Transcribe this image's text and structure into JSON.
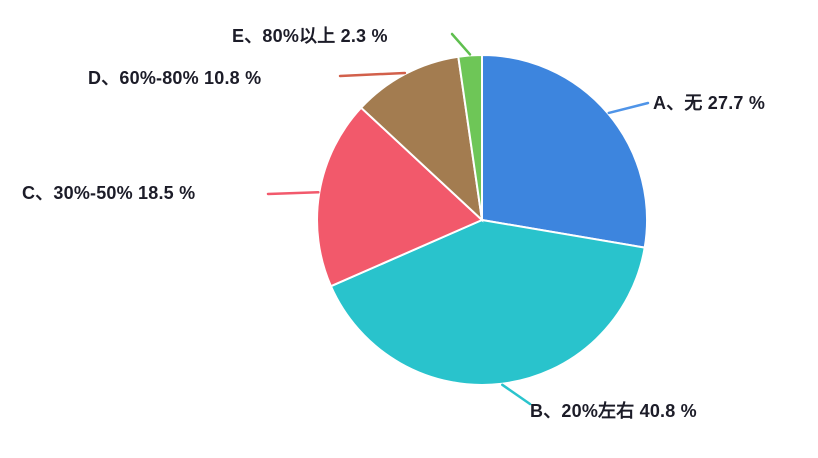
{
  "chart_data": {
    "type": "pie",
    "title": "",
    "unit": "%",
    "start_angle_deg": 0,
    "direction": "clockwise",
    "legend_position": "none",
    "background_color": "#ffffff",
    "label_text_color": "#1c1c28",
    "slices": [
      {
        "id": "A",
        "label": "A、无",
        "value": 27.7,
        "display": "A、无 27.7 %",
        "color": "#3d85de",
        "line_color": "#4f94e8"
      },
      {
        "id": "B",
        "label": "B、20%左右",
        "value": 40.8,
        "display": "B、20%左右 40.8 %",
        "color": "#29c3cc",
        "line_color": "#2bc4cd"
      },
      {
        "id": "C",
        "label": "C、30%-50%",
        "value": 18.5,
        "display": "C、30%-50% 18.5 %",
        "color": "#f2596b",
        "line_color": "#f2596c"
      },
      {
        "id": "D",
        "label": "D、60%-80%",
        "value": 10.8,
        "display": "D、60%-80% 10.8 %",
        "color": "#a37c50",
        "line_color": "#d2604b"
      },
      {
        "id": "E",
        "label": "E、80%以上",
        "value": 2.3,
        "display": "E、80%以上 2.3 %",
        "color": "#6ec657",
        "line_color": "#5fbf4f"
      }
    ]
  }
}
